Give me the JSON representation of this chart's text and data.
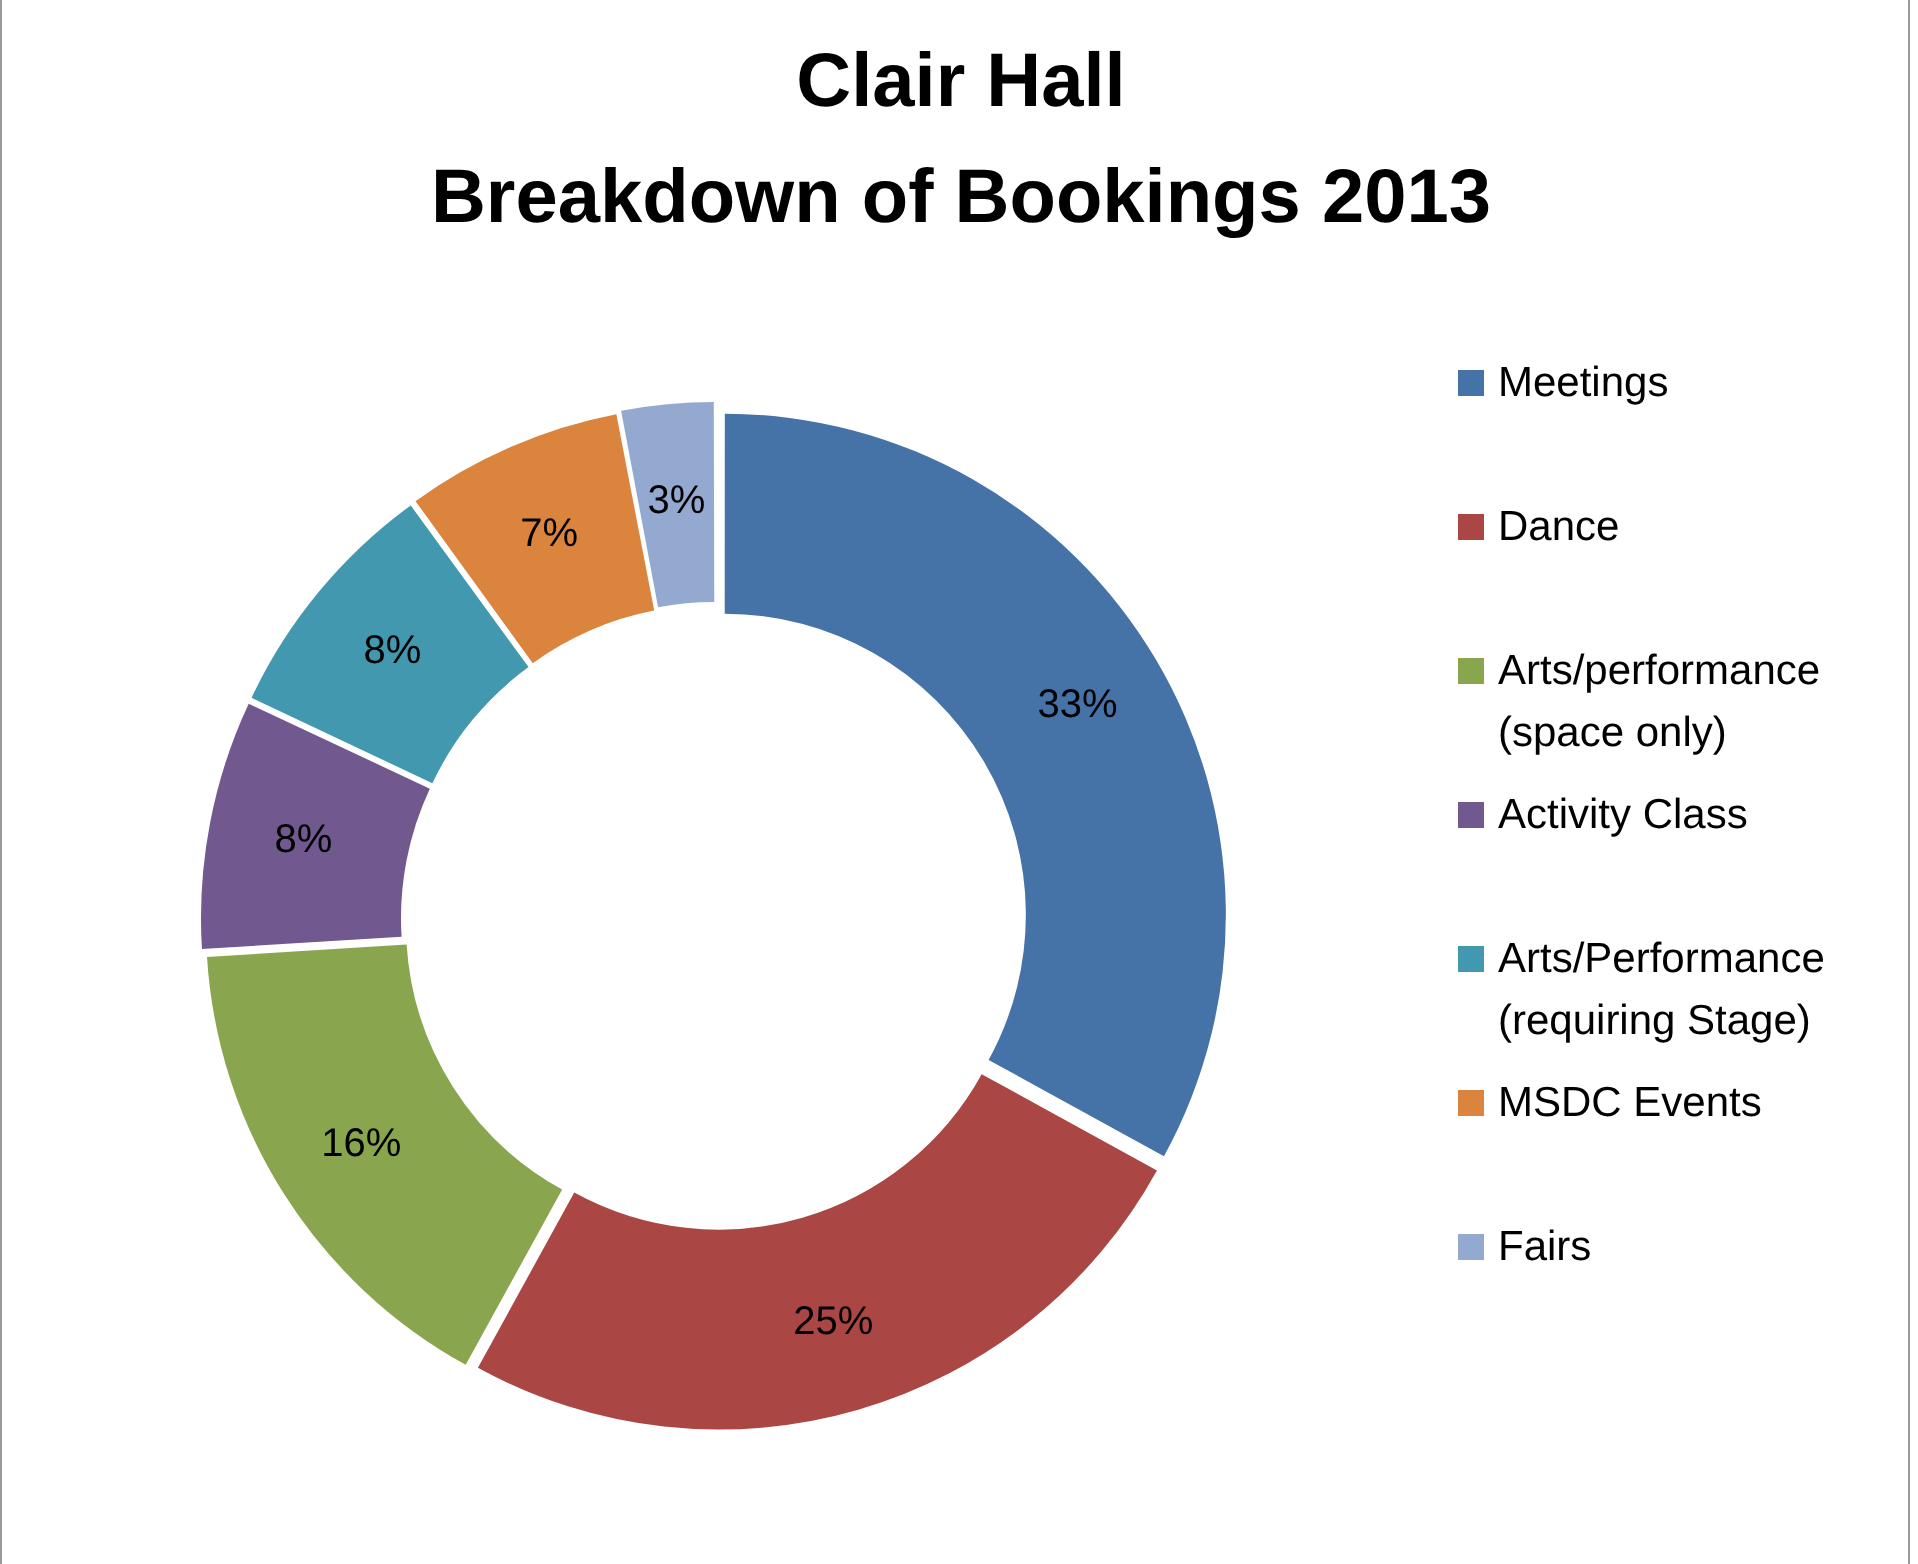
{
  "chart_data": {
    "type": "donut",
    "title": "Clair Hall",
    "subtitle": "Breakdown of Bookings 2013",
    "categories": [
      "Meetings",
      "Dance",
      "Arts/performance (space only)",
      "Activity Class",
      "Arts/Performance (requiring Stage)",
      "MSDC Events",
      "Fairs"
    ],
    "values": [
      33,
      25,
      16,
      8,
      8,
      7,
      3
    ],
    "value_labels": [
      "33%",
      "25%",
      "16%",
      "8%",
      "8%",
      "7%",
      "3%"
    ],
    "colors": [
      "#4572a7",
      "#aa4643",
      "#89a54e",
      "#71588f",
      "#4198af",
      "#db843d",
      "#93a9cf"
    ],
    "legend": "right"
  }
}
